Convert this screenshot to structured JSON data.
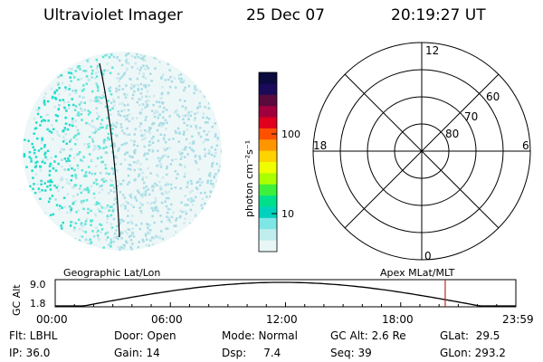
{
  "header": {
    "instrument": "Ultraviolet Imager",
    "date": "25 Dec 07",
    "time": "20:19:27 UT"
  },
  "colorbar": {
    "unit_label": "photon cm⁻²s⁻¹",
    "ticks": [
      "100",
      "10"
    ],
    "colors": [
      "#0a0a3c",
      "#1a0a5a",
      "#5a0a3c",
      "#a0003c",
      "#e0001e",
      "#ff5000",
      "#ff9600",
      "#ffd200",
      "#f0ff00",
      "#aaff00",
      "#3cf03c",
      "#00e08c",
      "#00d2be",
      "#7ee6e6",
      "#c0eeee",
      "#e8f6f6"
    ]
  },
  "polar_plot": {
    "clock_labels": [
      "12",
      "18",
      "6",
      "0"
    ],
    "lat_labels": [
      "60",
      "70",
      "80"
    ]
  },
  "timeline": {
    "left_title": "Geographic Lat/Lon",
    "right_title": "Apex MLat/MLT",
    "y_axis_label": "GC Alt",
    "y_ticks": [
      "9.0",
      "1.8"
    ],
    "x_ticks": [
      "00:00",
      "06:00",
      "12:00",
      "18:00",
      "23:59"
    ],
    "current_time_hours": 20.32,
    "marker_color": "#b03030"
  },
  "footer": {
    "filter": "Flt: LBHL",
    "ip": "IP: 36.0",
    "door": "Door: Open",
    "gain": "Gain: 14",
    "mode": "Mode: Normal",
    "dsp": "Dsp:     7.4",
    "gc_alt": "GC Alt: 2.6 Re",
    "seq": "Seq: 39",
    "glat": "GLat:  29.5",
    "glon": "GLon: 293.2"
  }
}
